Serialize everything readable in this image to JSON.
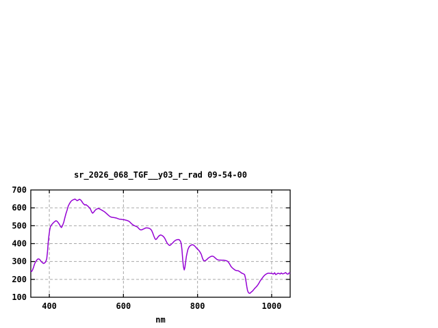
{
  "window": {
    "background": "#ffffff"
  },
  "chart_data": {
    "type": "line",
    "title": "sr_2026_068_TGF__y03_r_rad 09-54-00",
    "xlabel": "nm",
    "ylabel": "",
    "xlim": [
      350,
      1050
    ],
    "ylim": [
      100,
      700
    ],
    "xticks": [
      400,
      600,
      800,
      1000
    ],
    "yticks": [
      100,
      200,
      300,
      400,
      500,
      600,
      700
    ],
    "grid": true,
    "legend": "none",
    "colors": {
      "line": "#9400d3",
      "grid": "#a6a6a6",
      "border": "#000000",
      "text": "#000000"
    },
    "series": [
      {
        "name": "sr_2026_068_TGF__y03_r_rad",
        "points": [
          [
            350,
            248
          ],
          [
            352,
            244
          ],
          [
            354,
            250
          ],
          [
            357,
            265
          ],
          [
            360,
            285
          ],
          [
            363,
            298
          ],
          [
            366,
            308
          ],
          [
            369,
            314
          ],
          [
            372,
            314
          ],
          [
            375,
            309
          ],
          [
            378,
            300
          ],
          [
            381,
            294
          ],
          [
            384,
            289
          ],
          [
            387,
            291
          ],
          [
            390,
            298
          ],
          [
            393,
            315
          ],
          [
            395,
            355
          ],
          [
            397,
            405
          ],
          [
            399,
            445
          ],
          [
            401,
            475
          ],
          [
            403,
            495
          ],
          [
            406,
            505
          ],
          [
            409,
            512
          ],
          [
            412,
            519
          ],
          [
            415,
            524
          ],
          [
            418,
            528
          ],
          [
            421,
            525
          ],
          [
            424,
            517
          ],
          [
            427,
            508
          ],
          [
            430,
            496
          ],
          [
            433,
            490
          ],
          [
            436,
            503
          ],
          [
            439,
            520
          ],
          [
            442,
            545
          ],
          [
            445,
            568
          ],
          [
            448,
            588
          ],
          [
            451,
            610
          ],
          [
            454,
            622
          ],
          [
            457,
            632
          ],
          [
            460,
            640
          ],
          [
            463,
            644
          ],
          [
            466,
            646
          ],
          [
            469,
            649
          ],
          [
            472,
            645
          ],
          [
            475,
            640
          ],
          [
            478,
            643
          ],
          [
            481,
            648
          ],
          [
            484,
            645
          ],
          [
            487,
            638
          ],
          [
            490,
            628
          ],
          [
            493,
            621
          ],
          [
            496,
            616
          ],
          [
            499,
            618
          ],
          [
            502,
            613
          ],
          [
            505,
            608
          ],
          [
            508,
            601
          ],
          [
            511,
            593
          ],
          [
            514,
            578
          ],
          [
            517,
            570
          ],
          [
            520,
            576
          ],
          [
            523,
            585
          ],
          [
            526,
            591
          ],
          [
            529,
            594
          ],
          [
            532,
            596
          ],
          [
            535,
            595
          ],
          [
            538,
            591
          ],
          [
            541,
            588
          ],
          [
            545,
            583
          ],
          [
            549,
            578
          ],
          [
            553,
            571
          ],
          [
            557,
            563
          ],
          [
            561,
            556
          ],
          [
            565,
            550
          ],
          [
            569,
            547
          ],
          [
            573,
            546
          ],
          [
            577,
            545
          ],
          [
            581,
            543
          ],
          [
            585,
            540
          ],
          [
            589,
            537
          ],
          [
            593,
            536
          ],
          [
            597,
            535
          ],
          [
            601,
            534
          ],
          [
            605,
            532
          ],
          [
            609,
            530
          ],
          [
            613,
            527
          ],
          [
            617,
            521
          ],
          [
            621,
            513
          ],
          [
            625,
            506
          ],
          [
            629,
            501
          ],
          [
            633,
            497
          ],
          [
            637,
            494
          ],
          [
            640,
            488
          ],
          [
            643,
            481
          ],
          [
            646,
            477
          ],
          [
            649,
            477
          ],
          [
            652,
            480
          ],
          [
            655,
            482
          ],
          [
            658,
            486
          ],
          [
            661,
            488
          ],
          [
            664,
            488
          ],
          [
            667,
            487
          ],
          [
            670,
            485
          ],
          [
            673,
            481
          ],
          [
            676,
            474
          ],
          [
            679,
            460
          ],
          [
            682,
            442
          ],
          [
            685,
            428
          ],
          [
            687,
            423
          ],
          [
            689,
            425
          ],
          [
            691,
            430
          ],
          [
            694,
            439
          ],
          [
            697,
            445
          ],
          [
            700,
            448
          ],
          [
            703,
            447
          ],
          [
            706,
            443
          ],
          [
            709,
            437
          ],
          [
            712,
            428
          ],
          [
            715,
            415
          ],
          [
            718,
            403
          ],
          [
            721,
            395
          ],
          [
            724,
            390
          ],
          [
            727,
            392
          ],
          [
            730,
            398
          ],
          [
            733,
            404
          ],
          [
            736,
            411
          ],
          [
            739,
            416
          ],
          [
            742,
            420
          ],
          [
            745,
            422
          ],
          [
            748,
            423
          ],
          [
            751,
            421
          ],
          [
            754,
            413
          ],
          [
            756,
            400
          ],
          [
            758,
            365
          ],
          [
            760,
            310
          ],
          [
            762,
            270
          ],
          [
            764,
            253
          ],
          [
            766,
            267
          ],
          [
            768,
            300
          ],
          [
            770,
            330
          ],
          [
            772,
            350
          ],
          [
            774,
            368
          ],
          [
            777,
            381
          ],
          [
            780,
            388
          ],
          [
            783,
            392
          ],
          [
            786,
            394
          ],
          [
            789,
            392
          ],
          [
            792,
            387
          ],
          [
            795,
            381
          ],
          [
            798,
            373
          ],
          [
            801,
            367
          ],
          [
            804,
            361
          ],
          [
            807,
            352
          ],
          [
            810,
            340
          ],
          [
            813,
            320
          ],
          [
            816,
            306
          ],
          [
            819,
            303
          ],
          [
            822,
            306
          ],
          [
            825,
            311
          ],
          [
            828,
            317
          ],
          [
            831,
            322
          ],
          [
            834,
            326
          ],
          [
            837,
            329
          ],
          [
            840,
            330
          ],
          [
            843,
            328
          ],
          [
            846,
            323
          ],
          [
            849,
            317
          ],
          [
            852,
            312
          ],
          [
            855,
            309
          ],
          [
            858,
            308
          ],
          [
            862,
            308
          ],
          [
            866,
            307
          ],
          [
            870,
            307
          ],
          [
            874,
            306
          ],
          [
            878,
            304
          ],
          [
            882,
            300
          ],
          [
            886,
            288
          ],
          [
            890,
            273
          ],
          [
            894,
            264
          ],
          [
            898,
            257
          ],
          [
            902,
            251
          ],
          [
            906,
            249
          ],
          [
            910,
            248
          ],
          [
            914,
            243
          ],
          [
            918,
            237
          ],
          [
            921,
            233
          ],
          [
            924,
            231
          ],
          [
            927,
            226
          ],
          [
            929,
            210
          ],
          [
            931,
            185
          ],
          [
            933,
            158
          ],
          [
            935,
            138
          ],
          [
            937,
            127
          ],
          [
            939,
            123
          ],
          [
            941,
            122
          ],
          [
            943,
            125
          ],
          [
            945,
            129
          ],
          [
            948,
            134
          ],
          [
            951,
            141
          ],
          [
            954,
            149
          ],
          [
            957,
            155
          ],
          [
            960,
            162
          ],
          [
            963,
            170
          ],
          [
            966,
            180
          ],
          [
            969,
            191
          ],
          [
            972,
            200
          ],
          [
            975,
            208
          ],
          [
            978,
            216
          ],
          [
            981,
            223
          ],
          [
            984,
            228
          ],
          [
            987,
            232
          ],
          [
            990,
            234
          ],
          [
            993,
            235
          ],
          [
            996,
            233
          ],
          [
            999,
            234
          ],
          [
            1002,
            232
          ],
          [
            1005,
            230
          ],
          [
            1008,
            237
          ],
          [
            1011,
            227
          ],
          [
            1014,
            230
          ],
          [
            1017,
            234
          ],
          [
            1020,
            233
          ],
          [
            1023,
            230
          ],
          [
            1026,
            236
          ],
          [
            1029,
            231
          ],
          [
            1032,
            232
          ],
          [
            1035,
            235
          ],
          [
            1038,
            238
          ],
          [
            1041,
            231
          ],
          [
            1044,
            229
          ],
          [
            1047,
            236
          ],
          [
            1050,
            234
          ]
        ]
      }
    ]
  }
}
